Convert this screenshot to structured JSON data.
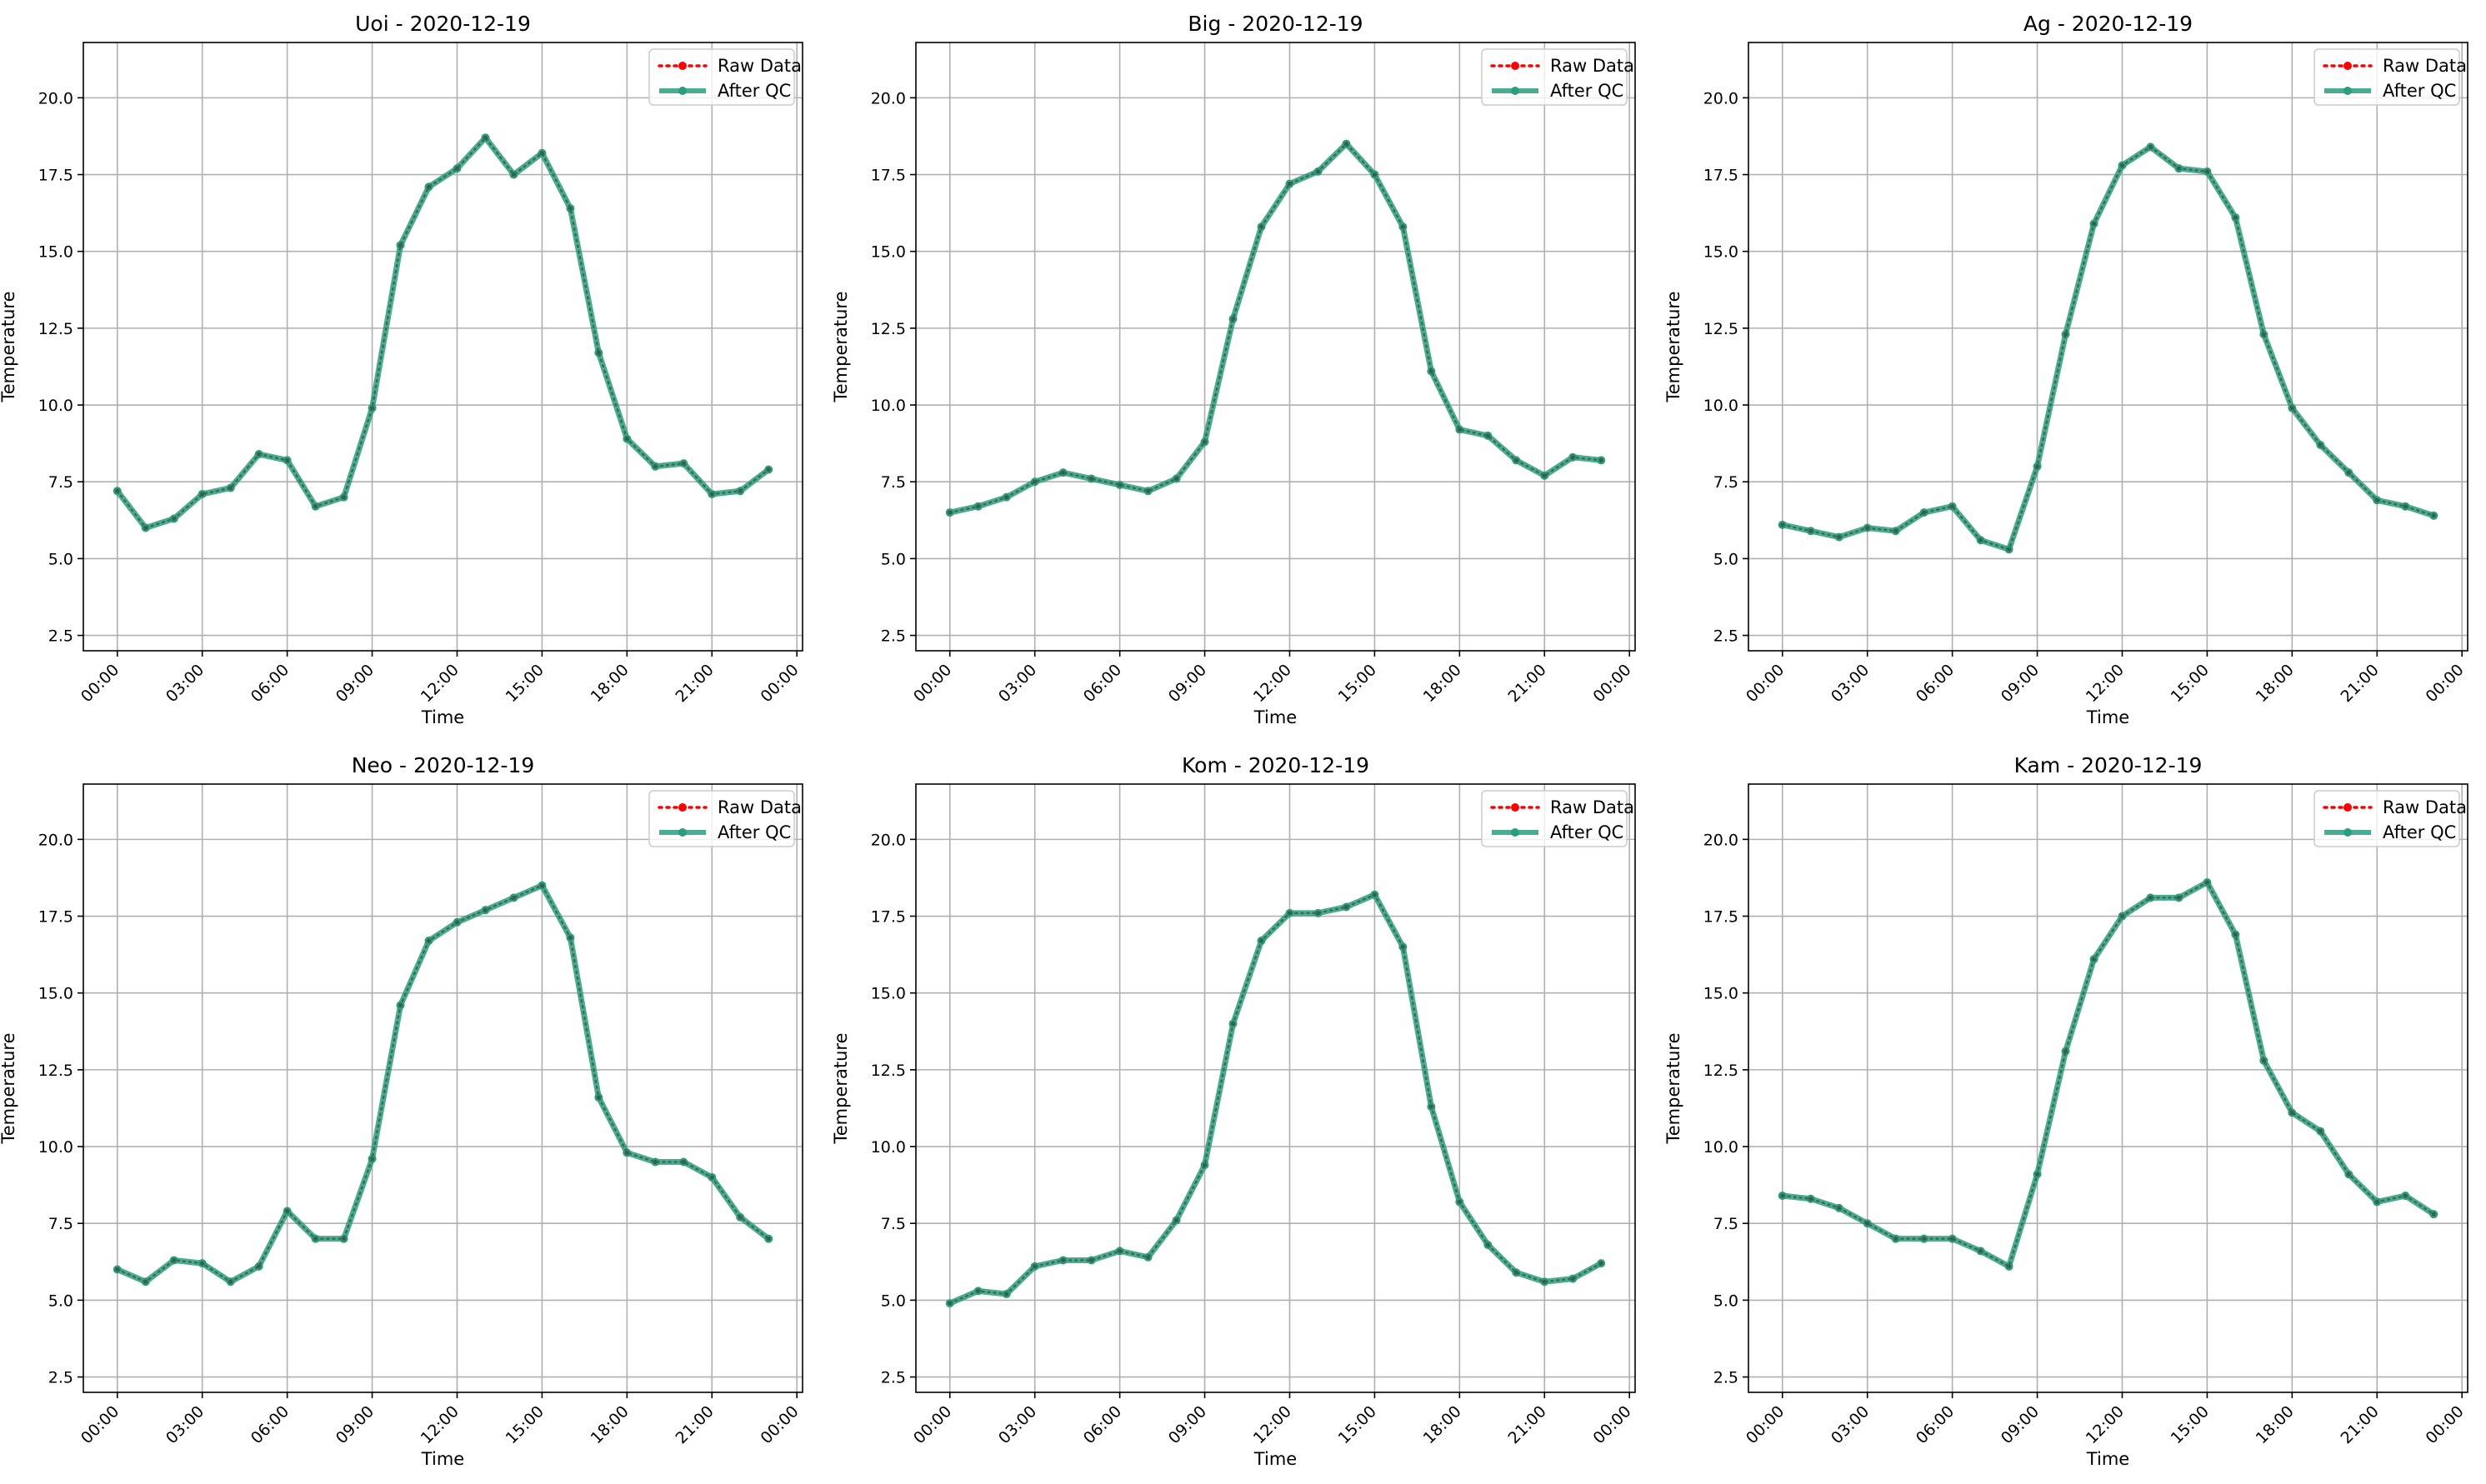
{
  "figure": {
    "colors": {
      "raw": "#ff0000",
      "qc": "#2a9d7d",
      "grid": "#b0b0b0",
      "axes": "#000000"
    }
  },
  "chart_data": [
    {
      "type": "line",
      "title": "Uoi - 2020-12-19",
      "xlabel": "Time",
      "ylabel": "Temperature",
      "x_tick_labels": [
        "00:00",
        "03:00",
        "06:00",
        "09:00",
        "12:00",
        "15:00",
        "18:00",
        "21:00",
        "00:00"
      ],
      "x_tick_hours": [
        0,
        3,
        6,
        9,
        12,
        15,
        18,
        21,
        24
      ],
      "y_ticks": [
        "2.5",
        "5.0",
        "7.5",
        "10.0",
        "12.5",
        "15.0",
        "17.5",
        "20.0"
      ],
      "y_tick_values": [
        2.5,
        5,
        7.5,
        10,
        12.5,
        15,
        17.5,
        20
      ],
      "xlim": [
        -1.2,
        24.2
      ],
      "ylim": [
        2,
        21.8
      ],
      "grid": true,
      "legend": "top-right",
      "x_hours": [
        0,
        1,
        2,
        3,
        4,
        5,
        6,
        7,
        8,
        9,
        10,
        11,
        12,
        13,
        14,
        15,
        16,
        17,
        18,
        19,
        20,
        21,
        22,
        23
      ],
      "series": [
        {
          "name": "Raw Data",
          "style": "dotted-markers",
          "values": [
            7.2,
            6.0,
            6.3,
            7.1,
            7.3,
            8.4,
            8.2,
            6.7,
            7.0,
            9.9,
            15.2,
            17.1,
            17.7,
            18.7,
            17.5,
            18.2,
            16.4,
            11.7,
            8.9,
            8.0,
            8.1,
            7.1,
            7.2,
            7.9
          ]
        },
        {
          "name": "After QC",
          "style": "solid-markers",
          "values": [
            7.2,
            6.0,
            6.3,
            7.1,
            7.3,
            8.4,
            8.2,
            6.7,
            7.0,
            9.9,
            15.2,
            17.1,
            17.7,
            18.7,
            17.5,
            18.2,
            16.4,
            11.7,
            8.9,
            8.0,
            8.1,
            7.1,
            7.2,
            7.9
          ]
        }
      ]
    },
    {
      "type": "line",
      "title": "Big - 2020-12-19",
      "xlabel": "Time",
      "ylabel": "Temperature",
      "x_tick_labels": [
        "00:00",
        "03:00",
        "06:00",
        "09:00",
        "12:00",
        "15:00",
        "18:00",
        "21:00",
        "00:00"
      ],
      "x_tick_hours": [
        0,
        3,
        6,
        9,
        12,
        15,
        18,
        21,
        24
      ],
      "y_ticks": [
        "2.5",
        "5.0",
        "7.5",
        "10.0",
        "12.5",
        "15.0",
        "17.5",
        "20.0"
      ],
      "y_tick_values": [
        2.5,
        5,
        7.5,
        10,
        12.5,
        15,
        17.5,
        20
      ],
      "xlim": [
        -1.2,
        24.2
      ],
      "ylim": [
        2,
        21.8
      ],
      "grid": true,
      "legend": "top-right",
      "x_hours": [
        0,
        1,
        2,
        3,
        4,
        5,
        6,
        7,
        8,
        9,
        10,
        11,
        12,
        13,
        14,
        15,
        16,
        17,
        18,
        19,
        20,
        21,
        22,
        23
      ],
      "series": [
        {
          "name": "Raw Data",
          "style": "dotted-markers",
          "values": [
            6.5,
            6.7,
            7.0,
            7.5,
            7.8,
            7.6,
            7.4,
            7.2,
            7.6,
            8.8,
            12.8,
            15.8,
            17.2,
            17.6,
            18.5,
            17.5,
            15.8,
            11.1,
            9.2,
            9.0,
            8.2,
            7.7,
            8.3,
            8.2
          ]
        },
        {
          "name": "After QC",
          "style": "solid-markers",
          "values": [
            6.5,
            6.7,
            7.0,
            7.5,
            7.8,
            7.6,
            7.4,
            7.2,
            7.6,
            8.8,
            12.8,
            15.8,
            17.2,
            17.6,
            18.5,
            17.5,
            15.8,
            11.1,
            9.2,
            9.0,
            8.2,
            7.7,
            8.3,
            8.2
          ]
        }
      ]
    },
    {
      "type": "line",
      "title": "Ag - 2020-12-19",
      "xlabel": "Time",
      "ylabel": "Temperature",
      "x_tick_labels": [
        "00:00",
        "03:00",
        "06:00",
        "09:00",
        "12:00",
        "15:00",
        "18:00",
        "21:00",
        "00:00"
      ],
      "x_tick_hours": [
        0,
        3,
        6,
        9,
        12,
        15,
        18,
        21,
        24
      ],
      "y_ticks": [
        "2.5",
        "5.0",
        "7.5",
        "10.0",
        "12.5",
        "15.0",
        "17.5",
        "20.0"
      ],
      "y_tick_values": [
        2.5,
        5,
        7.5,
        10,
        12.5,
        15,
        17.5,
        20
      ],
      "xlim": [
        -1.2,
        24.2
      ],
      "ylim": [
        2,
        21.8
      ],
      "grid": true,
      "legend": "top-right",
      "x_hours": [
        0,
        1,
        2,
        3,
        4,
        5,
        6,
        7,
        8,
        9,
        10,
        11,
        12,
        13,
        14,
        15,
        16,
        17,
        18,
        19,
        20,
        21,
        22,
        23
      ],
      "series": [
        {
          "name": "Raw Data",
          "style": "dotted-markers",
          "values": [
            6.1,
            5.9,
            5.7,
            6.0,
            5.9,
            6.5,
            6.7,
            5.6,
            5.3,
            8.0,
            12.3,
            15.9,
            17.8,
            18.4,
            17.7,
            17.6,
            16.1,
            12.3,
            9.9,
            8.7,
            7.8,
            6.9,
            6.7,
            6.4
          ]
        },
        {
          "name": "After QC",
          "style": "solid-markers",
          "values": [
            6.1,
            5.9,
            5.7,
            6.0,
            5.9,
            6.5,
            6.7,
            5.6,
            5.3,
            8.0,
            12.3,
            15.9,
            17.8,
            18.4,
            17.7,
            17.6,
            16.1,
            12.3,
            9.9,
            8.7,
            7.8,
            6.9,
            6.7,
            6.4
          ]
        }
      ]
    },
    {
      "type": "line",
      "title": "Neo - 2020-12-19",
      "xlabel": "Time",
      "ylabel": "Temperature",
      "x_tick_labels": [
        "00:00",
        "03:00",
        "06:00",
        "09:00",
        "12:00",
        "15:00",
        "18:00",
        "21:00",
        "00:00"
      ],
      "x_tick_hours": [
        0,
        3,
        6,
        9,
        12,
        15,
        18,
        21,
        24
      ],
      "y_ticks": [
        "2.5",
        "5.0",
        "7.5",
        "10.0",
        "12.5",
        "15.0",
        "17.5",
        "20.0"
      ],
      "y_tick_values": [
        2.5,
        5,
        7.5,
        10,
        12.5,
        15,
        17.5,
        20
      ],
      "xlim": [
        -1.2,
        24.2
      ],
      "ylim": [
        2,
        21.8
      ],
      "grid": true,
      "legend": "top-right",
      "x_hours": [
        0,
        1,
        2,
        3,
        4,
        5,
        6,
        7,
        8,
        9,
        10,
        11,
        12,
        13,
        14,
        15,
        16,
        17,
        18,
        19,
        20,
        21,
        22,
        23
      ],
      "series": [
        {
          "name": "Raw Data",
          "style": "dotted-markers",
          "values": [
            6.0,
            5.6,
            6.3,
            6.2,
            5.6,
            6.1,
            7.9,
            7.0,
            7.0,
            9.6,
            14.6,
            16.7,
            17.3,
            17.7,
            18.1,
            18.5,
            16.8,
            11.6,
            9.8,
            9.5,
            9.5,
            9.0,
            7.7,
            7.0
          ]
        },
        {
          "name": "After QC",
          "style": "solid-markers",
          "values": [
            6.0,
            5.6,
            6.3,
            6.2,
            5.6,
            6.1,
            7.9,
            7.0,
            7.0,
            9.6,
            14.6,
            16.7,
            17.3,
            17.7,
            18.1,
            18.5,
            16.8,
            11.6,
            9.8,
            9.5,
            9.5,
            9.0,
            7.7,
            7.0
          ]
        }
      ]
    },
    {
      "type": "line",
      "title": "Kom - 2020-12-19",
      "xlabel": "Time",
      "ylabel": "Temperature",
      "x_tick_labels": [
        "00:00",
        "03:00",
        "06:00",
        "09:00",
        "12:00",
        "15:00",
        "18:00",
        "21:00",
        "00:00"
      ],
      "x_tick_hours": [
        0,
        3,
        6,
        9,
        12,
        15,
        18,
        21,
        24
      ],
      "y_ticks": [
        "2.5",
        "5.0",
        "7.5",
        "10.0",
        "12.5",
        "15.0",
        "17.5",
        "20.0"
      ],
      "y_tick_values": [
        2.5,
        5,
        7.5,
        10,
        12.5,
        15,
        17.5,
        20
      ],
      "xlim": [
        -1.2,
        24.2
      ],
      "ylim": [
        2,
        21.8
      ],
      "grid": true,
      "legend": "top-right",
      "x_hours": [
        0,
        1,
        2,
        3,
        4,
        5,
        6,
        7,
        8,
        9,
        10,
        11,
        12,
        13,
        14,
        15,
        16,
        17,
        18,
        19,
        20,
        21,
        22,
        23
      ],
      "series": [
        {
          "name": "Raw Data",
          "style": "dotted-markers",
          "values": [
            4.9,
            5.3,
            5.2,
            6.1,
            6.3,
            6.3,
            6.6,
            6.4,
            7.6,
            9.4,
            14.0,
            16.7,
            17.6,
            17.6,
            17.8,
            18.2,
            16.5,
            11.3,
            8.2,
            6.8,
            5.9,
            5.6,
            5.7,
            6.2
          ]
        },
        {
          "name": "After QC",
          "style": "solid-markers",
          "values": [
            4.9,
            5.3,
            5.2,
            6.1,
            6.3,
            6.3,
            6.6,
            6.4,
            7.6,
            9.4,
            14.0,
            16.7,
            17.6,
            17.6,
            17.8,
            18.2,
            16.5,
            11.3,
            8.2,
            6.8,
            5.9,
            5.6,
            5.7,
            6.2
          ]
        }
      ]
    },
    {
      "type": "line",
      "title": "Kam - 2020-12-19",
      "xlabel": "Time",
      "ylabel": "Temperature",
      "x_tick_labels": [
        "00:00",
        "03:00",
        "06:00",
        "09:00",
        "12:00",
        "15:00",
        "18:00",
        "21:00",
        "00:00"
      ],
      "x_tick_hours": [
        0,
        3,
        6,
        9,
        12,
        15,
        18,
        21,
        24
      ],
      "y_ticks": [
        "2.5",
        "5.0",
        "7.5",
        "10.0",
        "12.5",
        "15.0",
        "17.5",
        "20.0"
      ],
      "y_tick_values": [
        2.5,
        5,
        7.5,
        10,
        12.5,
        15,
        17.5,
        20
      ],
      "xlim": [
        -1.2,
        24.2
      ],
      "ylim": [
        2,
        21.8
      ],
      "grid": true,
      "legend": "top-right",
      "x_hours": [
        0,
        1,
        2,
        3,
        4,
        5,
        6,
        7,
        8,
        9,
        10,
        11,
        12,
        13,
        14,
        15,
        16,
        17,
        18,
        19,
        20,
        21,
        22,
        23
      ],
      "series": [
        {
          "name": "Raw Data",
          "style": "dotted-markers",
          "values": [
            8.4,
            8.3,
            8.0,
            7.5,
            7.0,
            7.0,
            7.0,
            6.6,
            6.1,
            9.1,
            13.1,
            16.1,
            17.5,
            18.1,
            18.1,
            18.6,
            16.9,
            12.8,
            11.1,
            10.5,
            9.1,
            8.2,
            8.4,
            7.8
          ]
        },
        {
          "name": "After QC",
          "style": "solid-markers",
          "values": [
            8.4,
            8.3,
            8.0,
            7.5,
            7.0,
            7.0,
            7.0,
            6.6,
            6.1,
            9.1,
            13.1,
            16.1,
            17.5,
            18.1,
            18.1,
            18.6,
            16.9,
            12.8,
            11.1,
            10.5,
            9.1,
            8.2,
            8.4,
            7.8
          ]
        }
      ]
    }
  ]
}
